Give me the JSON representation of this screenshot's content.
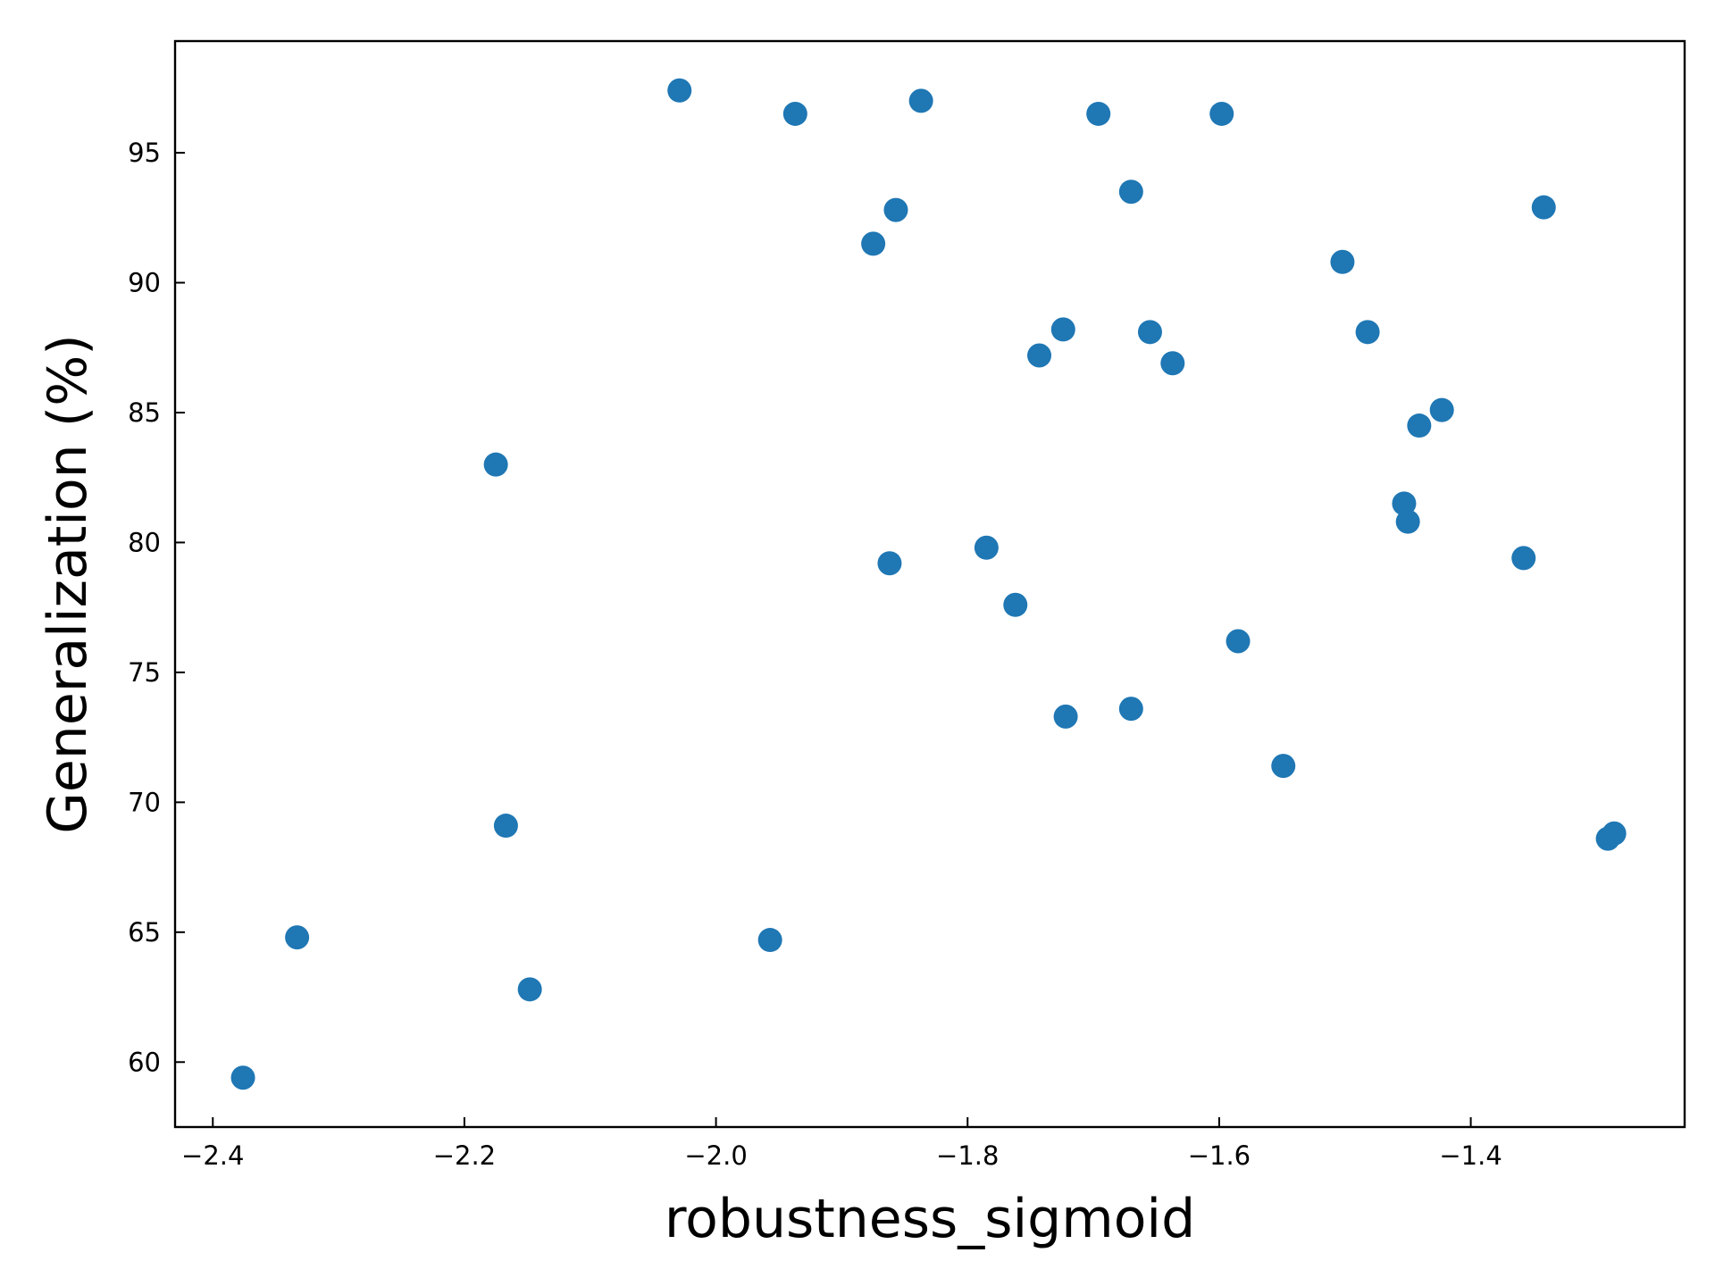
{
  "chart_data": {
    "type": "scatter",
    "title": "",
    "xlabel": "robustness_sigmoid",
    "ylabel": "Generalization (%)",
    "xlim": [
      -2.43,
      -1.23
    ],
    "ylim": [
      57.5,
      99.3
    ],
    "xticks": [
      -2.4,
      -2.2,
      -2.0,
      -1.8,
      -1.6,
      -1.4
    ],
    "xtick_labels": [
      "−2.4",
      "−2.2",
      "−2.0",
      "−1.8",
      "−1.6",
      "−1.4"
    ],
    "yticks": [
      60,
      65,
      70,
      75,
      80,
      85,
      90,
      95
    ],
    "ytick_labels": [
      "60",
      "65",
      "70",
      "75",
      "80",
      "85",
      "90",
      "95"
    ],
    "tick_direction": "in",
    "grid": false,
    "color": "#1f77b4",
    "points": [
      {
        "x": -2.376,
        "y": 59.4
      },
      {
        "x": -2.333,
        "y": 64.8
      },
      {
        "x": -2.175,
        "y": 83.0
      },
      {
        "x": -2.167,
        "y": 69.1
      },
      {
        "x": -2.148,
        "y": 62.8
      },
      {
        "x": -2.029,
        "y": 97.4
      },
      {
        "x": -1.957,
        "y": 64.7
      },
      {
        "x": -1.937,
        "y": 96.5
      },
      {
        "x": -1.875,
        "y": 91.5
      },
      {
        "x": -1.862,
        "y": 79.2
      },
      {
        "x": -1.857,
        "y": 92.8
      },
      {
        "x": -1.837,
        "y": 97.0
      },
      {
        "x": -1.785,
        "y": 79.8
      },
      {
        "x": -1.762,
        "y": 77.6
      },
      {
        "x": -1.743,
        "y": 87.2
      },
      {
        "x": -1.724,
        "y": 88.2
      },
      {
        "x": -1.722,
        "y": 73.3
      },
      {
        "x": -1.696,
        "y": 96.5
      },
      {
        "x": -1.67,
        "y": 93.5
      },
      {
        "x": -1.67,
        "y": 73.6
      },
      {
        "x": -1.655,
        "y": 88.1
      },
      {
        "x": -1.637,
        "y": 86.9
      },
      {
        "x": -1.598,
        "y": 96.5
      },
      {
        "x": -1.585,
        "y": 76.2
      },
      {
        "x": -1.549,
        "y": 71.4
      },
      {
        "x": -1.502,
        "y": 90.8
      },
      {
        "x": -1.482,
        "y": 88.1
      },
      {
        "x": -1.453,
        "y": 81.5
      },
      {
        "x": -1.45,
        "y": 80.8
      },
      {
        "x": -1.441,
        "y": 84.5
      },
      {
        "x": -1.423,
        "y": 85.1
      },
      {
        "x": -1.358,
        "y": 79.4
      },
      {
        "x": -1.342,
        "y": 92.9
      },
      {
        "x": -1.291,
        "y": 68.6
      },
      {
        "x": -1.286,
        "y": 68.8
      }
    ]
  }
}
